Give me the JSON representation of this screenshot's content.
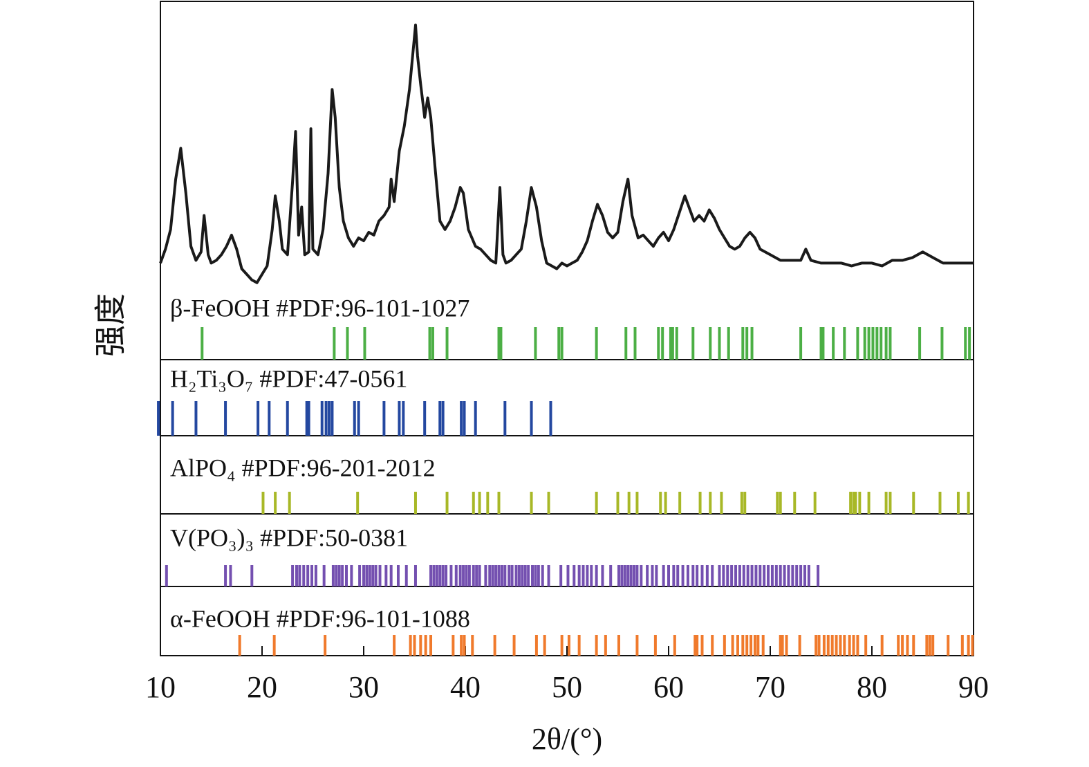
{
  "chart_data": {
    "type": "line",
    "x_label": "2θ/(°)",
    "y_label": "强度",
    "xlim": [
      10,
      90
    ],
    "xticks": [
      10,
      20,
      30,
      40,
      50,
      60,
      70,
      80,
      90
    ],
    "ylim": [
      0,
      100
    ],
    "series": [
      {
        "color": "#1a1a1a",
        "x": [
          10,
          10.5,
          11,
          11.5,
          12,
          12.5,
          13,
          13.5,
          14,
          14.3,
          14.7,
          15,
          15.5,
          16,
          16.5,
          17,
          17.5,
          18,
          18.5,
          19,
          19.5,
          20,
          20.5,
          21,
          21.3,
          21.7,
          22,
          22.5,
          23,
          23.3,
          23.6,
          23.9,
          24.2,
          24.6,
          24.8,
          25,
          25.5,
          26,
          26.5,
          26.9,
          27.2,
          27.6,
          28,
          28.5,
          29,
          29.5,
          30,
          30.5,
          31,
          31.5,
          32,
          32.5,
          32.7,
          33,
          33.5,
          34,
          34.5,
          35.1,
          35.3,
          35.6,
          36,
          36.3,
          36.6,
          37,
          37.5,
          38,
          38.5,
          39,
          39.5,
          39.8,
          40.3,
          41,
          41.5,
          42,
          42.5,
          43,
          43.4,
          43.7,
          44,
          44.5,
          45,
          45.5,
          46,
          46.5,
          47,
          47.5,
          48,
          48.5,
          49,
          49.5,
          50,
          50.5,
          51,
          51.5,
          52,
          52.5,
          53,
          53.5,
          54,
          54.5,
          55,
          55.5,
          56,
          56.4,
          57,
          57.5,
          58,
          58.5,
          59,
          59.5,
          60,
          60.5,
          61.6,
          62,
          62.5,
          63,
          63.5,
          64,
          64.5,
          65,
          65.5,
          66,
          66.5,
          67,
          67.5,
          68,
          68.5,
          69,
          70,
          71,
          72,
          73,
          73.5,
          74,
          75,
          76,
          77,
          78,
          79,
          80,
          81,
          82,
          83,
          84,
          85,
          86,
          87,
          88,
          89,
          90
        ],
        "values": [
          11,
          16,
          23,
          41,
          52,
          36,
          17,
          12,
          15,
          28,
          14,
          11,
          12,
          14,
          17,
          21,
          16,
          9,
          7,
          5,
          4,
          7,
          10,
          23,
          35,
          26,
          16,
          14,
          40,
          58,
          21,
          31,
          14,
          15,
          59,
          16,
          14,
          23,
          43,
          73,
          63,
          38,
          26,
          20,
          17,
          20,
          19,
          22,
          21,
          26,
          28,
          31,
          41,
          33,
          51,
          60,
          73,
          96,
          85,
          75,
          63,
          70,
          63,
          46,
          26,
          23,
          26,
          31,
          38,
          36,
          23,
          17,
          16,
          14,
          12,
          11,
          38,
          14,
          11,
          12,
          14,
          16,
          26,
          38,
          31,
          19,
          11,
          10,
          9,
          11,
          10,
          11,
          12,
          15,
          19,
          26,
          32,
          28,
          22,
          20,
          22,
          33,
          41,
          28,
          20,
          21,
          19,
          17,
          20,
          22,
          19,
          23,
          35,
          31,
          26,
          28,
          26,
          30,
          27,
          23,
          20,
          17,
          16,
          17,
          20,
          22,
          20,
          16,
          14,
          12,
          12,
          12,
          16,
          12,
          11,
          11,
          11,
          10,
          11,
          11,
          10,
          12,
          12,
          13,
          15,
          13,
          11,
          11,
          11,
          11
        ]
      }
    ],
    "references": [
      {
        "name": "β-FeOOH #PDF:96-101-1027",
        "color": "#4caf45",
        "positions": [
          14.1,
          27.1,
          28.4,
          30.1,
          36.5,
          36.8,
          38.2,
          43.3,
          43.5,
          46.9,
          49.2,
          49.5,
          52.9,
          55.8,
          56.7,
          59.0,
          59.4,
          60.2,
          60.4,
          60.8,
          62.4,
          64.1,
          65.0,
          65.9,
          67.3,
          67.7,
          68.2,
          73.0,
          75.0,
          75.2,
          76.2,
          77.3,
          78.6,
          79.3,
          79.7,
          80.1,
          80.5,
          80.9,
          81.4,
          81.8,
          84.7,
          86.9,
          89.2,
          89.6
        ]
      },
      {
        "name": "H₂Ti₃O₇ #PDF:47-0561",
        "color": "#2448a0",
        "positions": [
          9.8,
          11.2,
          13.5,
          16.4,
          19.6,
          20.7,
          22.5,
          24.4,
          24.6,
          25.9,
          26.3,
          26.6,
          26.9,
          29.1,
          29.5,
          32.0,
          33.5,
          33.9,
          36.0,
          37.5,
          37.8,
          39.6,
          39.9,
          41.0,
          43.9,
          46.5,
          48.4
        ]
      },
      {
        "name": "AlPO₄ #PDF:96-201-2012",
        "color": "#a8b827",
        "positions": [
          20.1,
          21.3,
          22.7,
          29.4,
          35.1,
          38.2,
          40.8,
          41.4,
          42.2,
          43.3,
          46.5,
          48.2,
          52.9,
          55.0,
          56.1,
          56.9,
          59.2,
          59.7,
          61.1,
          63.1,
          64.1,
          65.2,
          67.2,
          67.5,
          70.7,
          71.0,
          72.4,
          74.4,
          77.9,
          78.2,
          78.4,
          78.8,
          79.7,
          81.4,
          81.8,
          84.1,
          86.7,
          88.5,
          89.5
        ]
      },
      {
        "name": "V(PO₃)₃ #PDF:50-0381",
        "color": "#7450b0",
        "positions": [
          10.6,
          16.4,
          16.9,
          19.0,
          23.0,
          23.4,
          23.7,
          24.1,
          24.5,
          24.9,
          25.3,
          26.1,
          27.0,
          27.3,
          27.6,
          27.9,
          28.3,
          28.8,
          29.6,
          30.0,
          30.3,
          30.6,
          30.9,
          31.2,
          31.6,
          32.2,
          32.7,
          33.4,
          34.2,
          35.1,
          36.6,
          36.9,
          37.2,
          37.5,
          37.8,
          38.1,
          38.6,
          39.1,
          39.5,
          39.8,
          40.1,
          40.4,
          40.8,
          41.1,
          41.4,
          42.0,
          42.4,
          42.7,
          43.0,
          43.3,
          43.6,
          43.9,
          44.3,
          44.6,
          45.0,
          45.3,
          45.6,
          45.9,
          46.2,
          46.6,
          46.9,
          47.2,
          47.6,
          48.2,
          49.4,
          50.1,
          50.7,
          51.2,
          51.6,
          52.0,
          52.4,
          52.9,
          53.5,
          54.3,
          55.1,
          55.4,
          55.7,
          56.0,
          56.3,
          56.6,
          56.9,
          57.3,
          57.9,
          58.4,
          58.8,
          59.5,
          60.0,
          60.5,
          60.9,
          61.4,
          61.9,
          62.4,
          62.8,
          63.3,
          63.8,
          64.3,
          65.0,
          65.4,
          65.8,
          66.2,
          66.6,
          67.0,
          67.4,
          67.8,
          68.2,
          68.6,
          69.0,
          69.4,
          69.8,
          70.2,
          70.6,
          71.0,
          71.4,
          71.8,
          72.2,
          72.6,
          73.0,
          73.4,
          73.8,
          74.7
        ]
      },
      {
        "name": "α-FeOOH #PDF:96-101-1088",
        "color": "#f07a2c",
        "positions": [
          17.8,
          21.2,
          26.2,
          33.0,
          34.6,
          35.0,
          35.6,
          36.1,
          36.6,
          38.8,
          39.6,
          39.9,
          40.7,
          42.9,
          44.8,
          47.0,
          47.8,
          49.5,
          50.2,
          51.2,
          52.9,
          53.8,
          55.1,
          56.9,
          58.7,
          60.6,
          62.6,
          62.8,
          63.3,
          64.3,
          65.5,
          66.3,
          66.8,
          67.3,
          67.7,
          68.1,
          68.5,
          68.8,
          69.3,
          71.0,
          71.2,
          71.6,
          72.9,
          74.5,
          74.8,
          75.3,
          75.7,
          76.1,
          76.5,
          76.9,
          77.3,
          77.8,
          78.2,
          78.6,
          79.4,
          81.0,
          82.6,
          83.0,
          83.5,
          84.1,
          85.4,
          85.7,
          86.0,
          87.5,
          88.9,
          89.5,
          89.9
        ]
      }
    ]
  }
}
